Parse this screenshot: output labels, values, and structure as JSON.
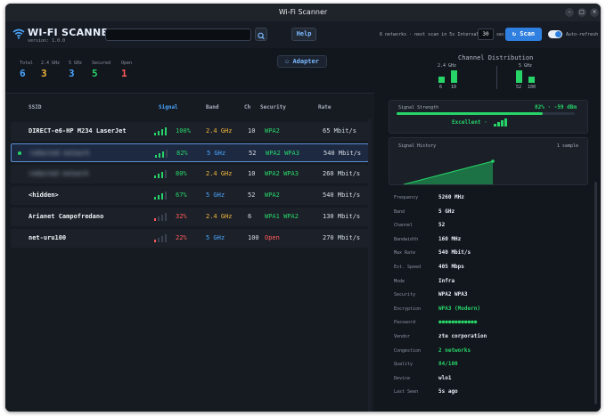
{
  "window": {
    "title": "Wi-Fi Scanner",
    "controls": {
      "minimize": "–",
      "maximize": "□",
      "close": "×"
    }
  },
  "header": {
    "app_name": "WI-FI SCANNER",
    "version": "version: 1.0.0",
    "search_placeholder": "",
    "search_icon": "search-icon",
    "help_label": "Help",
    "status": "6 networks · next scan in 5s",
    "interval_label": "Interval:",
    "interval_value": "30",
    "interval_unit": "sec",
    "scan_label": "Scan",
    "auto_refresh_label": "Auto-refresh",
    "auto_refresh_on": true
  },
  "stats": {
    "items": [
      {
        "label": "Total",
        "value": "6",
        "color": "#4aa7ff"
      },
      {
        "label": "2.4 GHz",
        "value": "3",
        "color": "#f0b43c"
      },
      {
        "label": "5 GHz",
        "value": "3",
        "color": "#4aa7ff"
      },
      {
        "label": "Secured",
        "value": "5",
        "color": "#27d468"
      },
      {
        "label": "Open",
        "value": "1",
        "color": "#ff5a5a"
      }
    ],
    "adapter_label": "Adapter"
  },
  "channel_distribution": {
    "title": "Channel Distribution",
    "groups": [
      {
        "band": "2.4 GHz",
        "channels": [
          {
            "ch": "6",
            "count": 1
          },
          {
            "ch": "10",
            "count": 2
          }
        ]
      },
      {
        "band": "5 GHz",
        "channels": [
          {
            "ch": "52",
            "count": 2
          },
          {
            "ch": "100",
            "count": 1
          }
        ]
      }
    ]
  },
  "list": {
    "columns": {
      "ssid": "SSID",
      "signal": "Signal",
      "band": "Band",
      "ch": "Ch",
      "security": "Security",
      "rate": "Rate"
    },
    "rows": [
      {
        "ssid": "DIRECT-e6-HP M234 LaserJet",
        "signal": "100%",
        "level": 1.0,
        "band": "2.4 GHz",
        "ch": "10",
        "security": "WPA2",
        "rate": "65 Mbit/s",
        "blurred": false,
        "selected": false
      },
      {
        "ssid": "redacted network",
        "signal": "82%",
        "level": 0.82,
        "band": "5 GHz",
        "ch": "52",
        "security": "WPA2 WPA3",
        "rate": "540 Mbit/s",
        "blurred": true,
        "selected": true
      },
      {
        "ssid": "redacted network",
        "signal": "80%",
        "level": 0.8,
        "band": "2.4 GHz",
        "ch": "10",
        "security": "WPA2 WPA3",
        "rate": "260 Mbit/s",
        "blurred": true,
        "selected": false
      },
      {
        "ssid": "<hidden>",
        "signal": "67%",
        "level": 0.67,
        "band": "5 GHz",
        "ch": "52",
        "security": "WPA2",
        "rate": "540 Mbit/s",
        "blurred": false,
        "selected": false
      },
      {
        "ssid": "Arianet Campofredano",
        "signal": "32%",
        "level": 0.32,
        "band": "2.4 GHz",
        "ch": "6",
        "security": "WPA1 WPA2",
        "rate": "130 Mbit/s",
        "blurred": false,
        "selected": false
      },
      {
        "ssid": "net-uru100",
        "signal": "22%",
        "level": 0.22,
        "band": "5 GHz",
        "ch": "100",
        "security": "Open",
        "rate": "270 Mbit/s",
        "blurred": false,
        "selected": false
      }
    ]
  },
  "detail": {
    "strength_title": "Signal Strength",
    "strength_value": "82% · -59 dBm",
    "strength_level": 0.82,
    "quality_label": "Excellent ·",
    "history_title": "Signal History",
    "history_samples": "1 sample",
    "fields": [
      {
        "key": "Frequency",
        "value": "5260 MHz",
        "color": "#e6edf5"
      },
      {
        "key": "Band",
        "value": "5 GHz",
        "color": "#e6edf5"
      },
      {
        "key": "Channel",
        "value": "52",
        "color": "#e6edf5"
      },
      {
        "key": "Bandwidth",
        "value": "160 MHz",
        "color": "#e6edf5"
      },
      {
        "key": "Max Rate",
        "value": "540 Mbit/s",
        "color": "#e6edf5"
      },
      {
        "key": "Est. Speed",
        "value": "405 Mbps",
        "color": "#e6edf5"
      },
      {
        "key": "Mode",
        "value": "Infra",
        "color": "#e6edf5"
      },
      {
        "key": "Security",
        "value": "WPA2 WPA3",
        "color": "#e6edf5"
      },
      {
        "key": "Encryption",
        "value": "WPA3 (Modern)",
        "color": "#27d468"
      },
      {
        "key": "Password",
        "value": "●●●●●●●●●●●●",
        "color": "#27d468"
      },
      {
        "key": "Vendor",
        "value": "zte corporation",
        "color": "#e6edf5"
      },
      {
        "key": "Congestion",
        "value": "2 networks",
        "color": "#27d468"
      },
      {
        "key": "Quality",
        "value": "84/100",
        "color": "#27d468"
      },
      {
        "key": "Device",
        "value": "wlo1",
        "color": "#e6edf5"
      },
      {
        "key": "Last Seen",
        "value": "5s ago",
        "color": "#e6edf5"
      }
    ]
  },
  "colors": {
    "accent": "#2f7fe0",
    "green": "#27d468",
    "amber": "#f0b43c",
    "blue": "#4aa7ff",
    "red": "#ff5a5a"
  }
}
